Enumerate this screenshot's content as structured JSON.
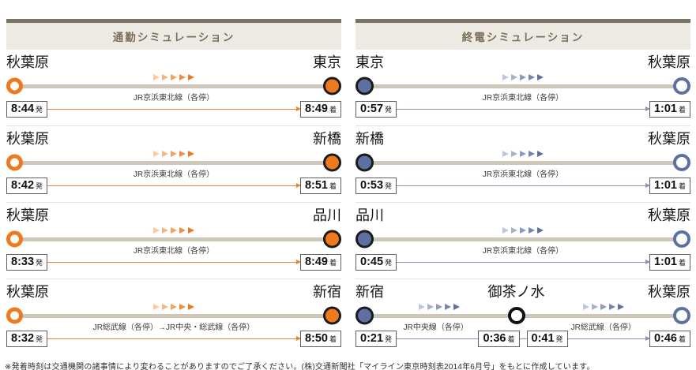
{
  "labels": {
    "depart": "発",
    "arrive": "着"
  },
  "panels": {
    "left": {
      "title": "通勤シミュレーション",
      "rows": [
        {
          "from": "秋葉原",
          "to": "東京",
          "line": "JR京浜東北線（各停）",
          "dep": "8:44",
          "arr": "8:49"
        },
        {
          "from": "秋葉原",
          "to": "新橋",
          "line": "JR京浜東北線（各停）",
          "dep": "8:42",
          "arr": "8:51"
        },
        {
          "from": "秋葉原",
          "to": "品川",
          "line": "JR京浜東北線（各停）",
          "dep": "8:33",
          "arr": "8:49"
        },
        {
          "from": "秋葉原",
          "to": "新宿",
          "line": "JR総武線（各停）→JR中央・総武線（各停）",
          "dep": "8:32",
          "arr": "8:50"
        }
      ]
    },
    "right": {
      "title": "終電シミュレーション",
      "rows": [
        {
          "from": "東京",
          "to": "秋葉原",
          "line": "JR京浜東北線（各停）",
          "dep": "0:57",
          "arr": "1:01"
        },
        {
          "from": "新橋",
          "to": "秋葉原",
          "line": "JR京浜東北線（各停）",
          "dep": "0:53",
          "arr": "1:01"
        },
        {
          "from": "品川",
          "to": "秋葉原",
          "line": "JR京浜東北線（各停）",
          "dep": "0:45",
          "arr": "1:01"
        },
        {
          "from": "新宿",
          "via": "御茶ノ水",
          "to": "秋葉原",
          "line1": "JR中央線（各停）",
          "line2": "JR総武線（各停）",
          "dep": "0:21",
          "arr_mid": "0:36",
          "dep_mid": "0:41",
          "arr": "0:46"
        }
      ]
    }
  },
  "colors": {
    "commute_accent": "#ef7a1e",
    "lasttrain_accent": "#5e6fa2",
    "rail": "#cdc6b9",
    "header_strip": "#7b7266",
    "header_band": "#edeae3",
    "title_text": "#7b6e5a"
  },
  "footer": "※発着時刻は交通機関の諸事情により変わることがありますのでご了承ください。(株)交通新聞社「マイライン東京時刻表2014年6月号」をもとに作成しています。"
}
